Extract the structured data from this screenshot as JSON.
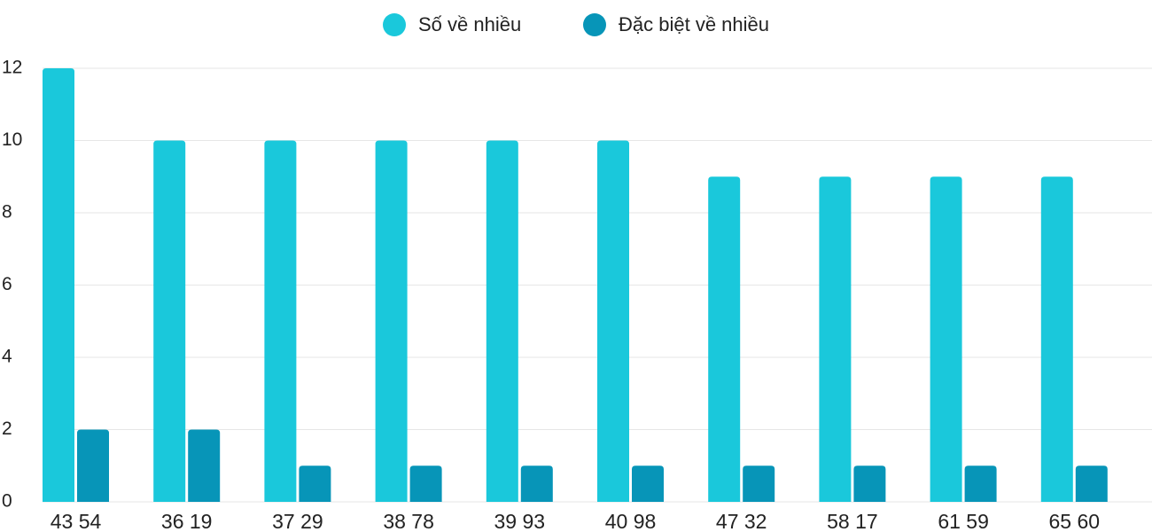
{
  "chart_data": {
    "type": "bar",
    "categories": [
      "43 54",
      "36 19",
      "37 29",
      "38 78",
      "39 93",
      "40 98",
      "47 32",
      "58 17",
      "61 59",
      "65 60"
    ],
    "series": [
      {
        "name": "Số về nhiều",
        "color": "#1ac8db",
        "values": [
          12,
          10,
          10,
          10,
          10,
          10,
          9,
          9,
          9,
          9
        ]
      },
      {
        "name": "Đặc biệt về nhiều",
        "color": "#0795b8",
        "values": [
          2,
          2,
          1,
          1,
          1,
          1,
          1,
          1,
          1,
          1
        ]
      }
    ],
    "ylim": [
      0,
      12
    ],
    "yticks": [
      0,
      2,
      4,
      6,
      8,
      10,
      12
    ],
    "grid": true,
    "legend": "top"
  }
}
